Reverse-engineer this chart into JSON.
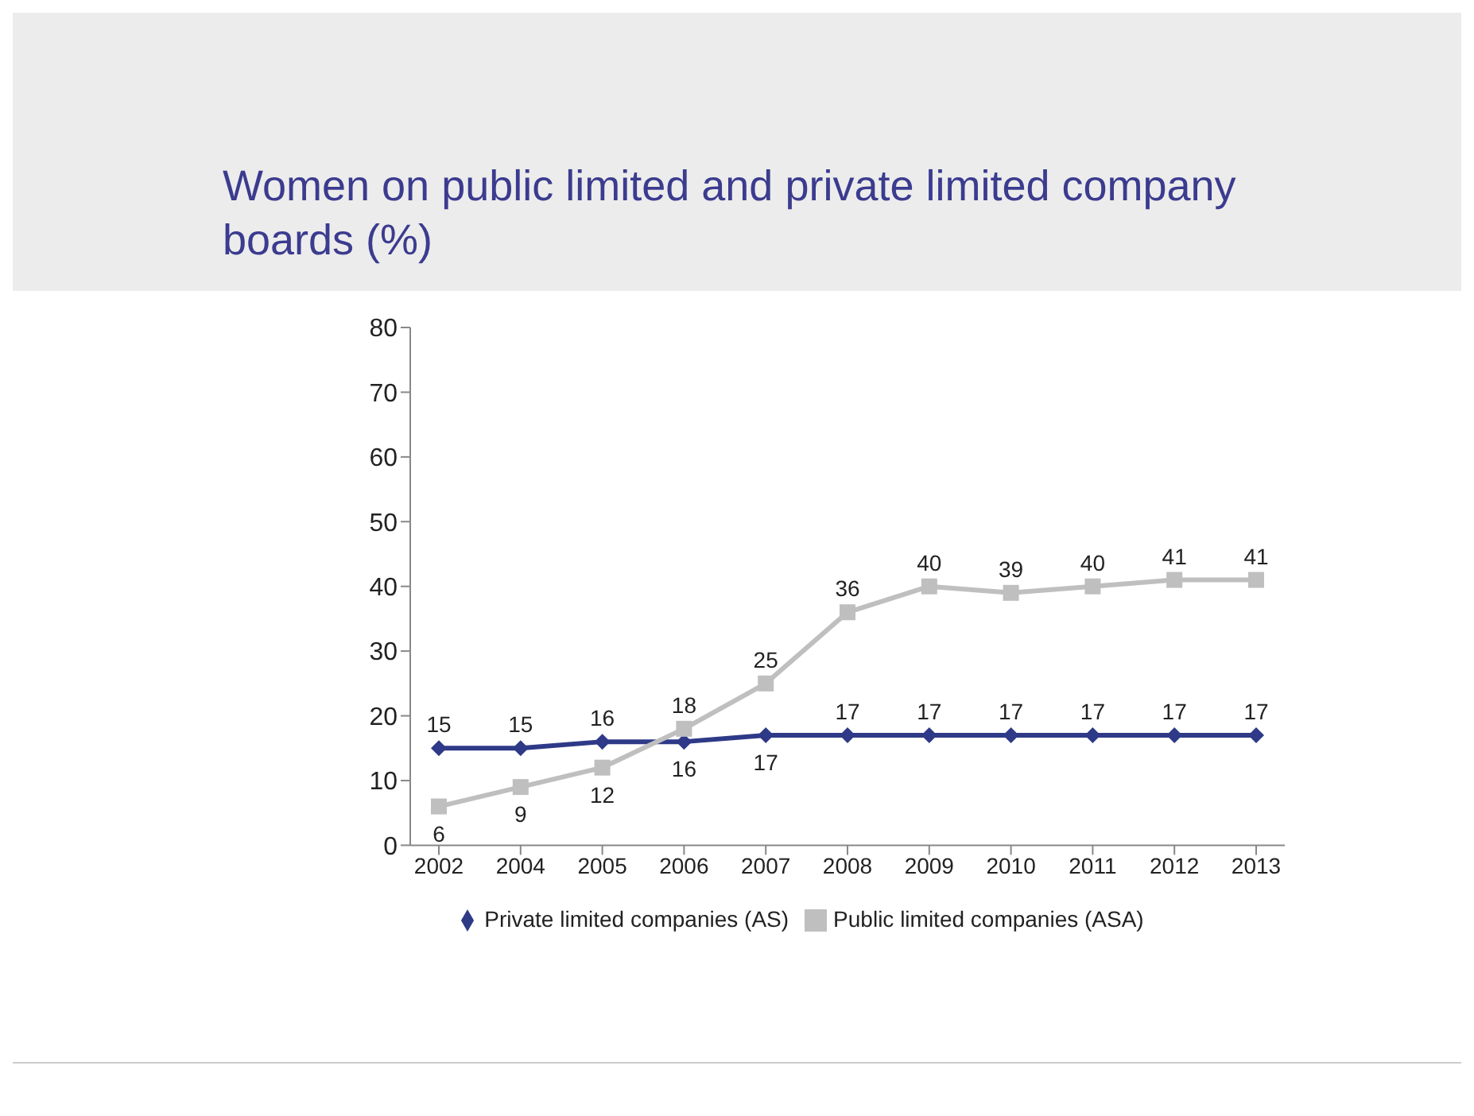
{
  "chart_data": {
    "type": "line",
    "title": "Women on public limited and private limited company boards (%)",
    "categories": [
      "2002",
      "2004",
      "2005",
      "2006",
      "2007",
      "2008",
      "2009",
      "2010",
      "2011",
      "2012",
      "2013"
    ],
    "series": [
      {
        "name": "Private limited companies (AS)",
        "color": "#2e3a87",
        "marker": "diamond",
        "values": [
          15,
          15,
          16,
          16,
          17,
          17,
          17,
          17,
          17,
          17,
          17
        ]
      },
      {
        "name": "Public limited companies (ASA)",
        "color": "#bfbfbf",
        "marker": "square",
        "values": [
          6,
          9,
          12,
          18,
          25,
          36,
          40,
          39,
          40,
          41,
          41
        ]
      }
    ],
    "ylim": [
      0,
      80
    ],
    "yticks": [
      0,
      10,
      20,
      30,
      40,
      50,
      60,
      70,
      80
    ],
    "legend": "bottom",
    "data_labels": true,
    "line_style": "solid"
  }
}
